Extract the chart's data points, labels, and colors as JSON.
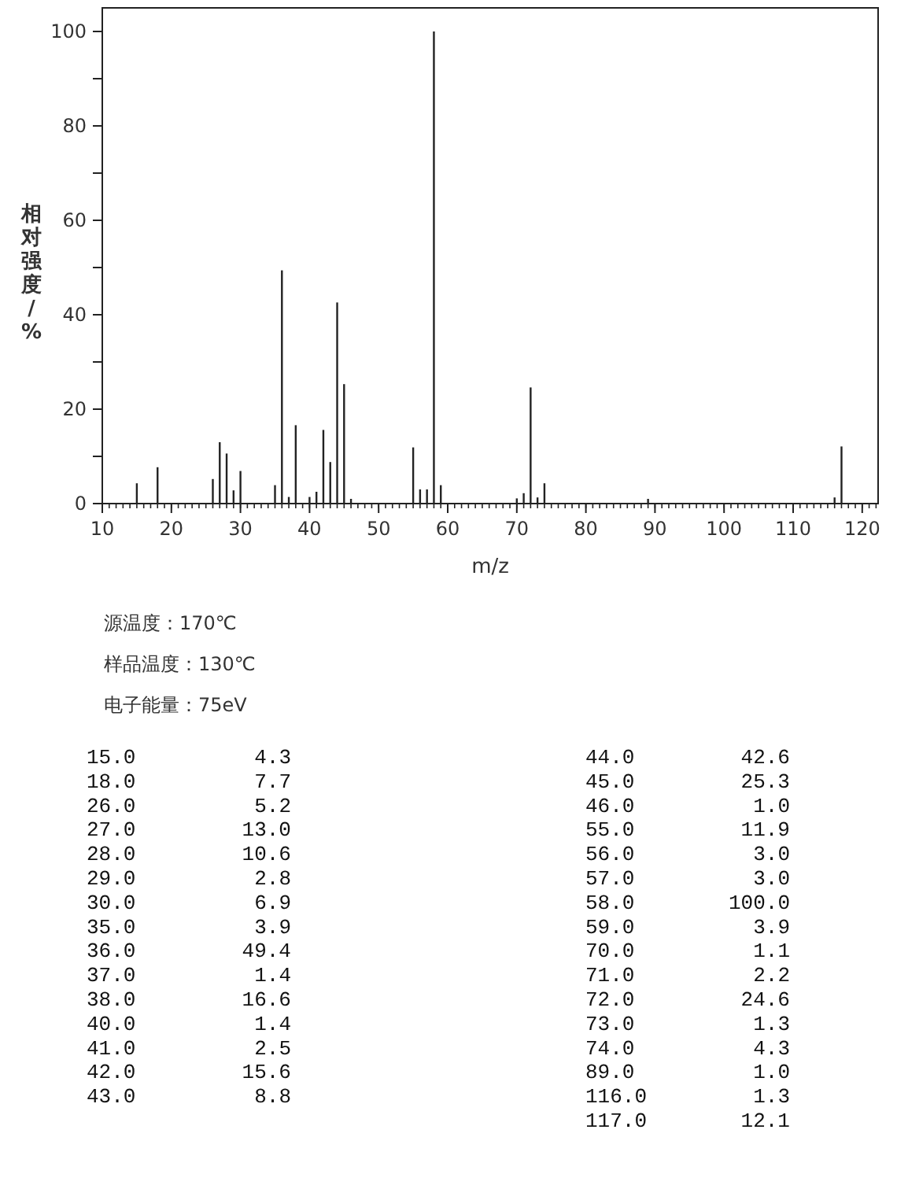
{
  "chart_data": [
    {
      "type": "bar",
      "xlabel": "m/z",
      "ylabel": "相对强度/%",
      "x": [
        15,
        18,
        26,
        27,
        28,
        29,
        30,
        35,
        36,
        37,
        38,
        40,
        41,
        42,
        43,
        44,
        45,
        46,
        55,
        56,
        57,
        58,
        59,
        70,
        71,
        72,
        73,
        74,
        89,
        116,
        117
      ],
      "values": [
        4.3,
        7.7,
        5.2,
        13.0,
        10.6,
        2.8,
        6.9,
        3.9,
        49.4,
        1.4,
        16.6,
        1.4,
        2.5,
        15.6,
        8.8,
        42.6,
        25.3,
        1.0,
        11.9,
        3.0,
        3.0,
        100.0,
        3.9,
        1.1,
        2.2,
        24.6,
        1.3,
        4.3,
        1.0,
        1.3,
        12.1
      ],
      "color": "#222222",
      "xlim": [
        10,
        122.3
      ],
      "xticks": [
        10,
        20,
        30,
        40,
        50,
        60,
        70,
        80,
        90,
        100,
        110,
        120
      ],
      "ylim": [
        0,
        105
      ],
      "yticks": [
        0,
        {
          "value": 10,
          "label": null
        },
        20,
        {
          "value": 30,
          "label": null
        },
        40,
        {
          "value": 50,
          "label": null
        },
        60,
        {
          "value": 70,
          "label": null
        },
        80,
        {
          "value": 90,
          "label": null
        },
        100
      ],
      "grid": false,
      "annotations": [
        "源温度：170℃",
        "样品温度：130℃",
        "电子能量：75eV"
      ]
    },
    {
      "type": "other",
      "annotations": [
        "15.0",
        "4.3",
        "18.0",
        "7.7",
        "26.0",
        "5.2",
        "27.0",
        "13.0",
        "28.0",
        "10.6",
        "29.0",
        "2.8",
        "30.0",
        "6.9",
        "35.0",
        "3.9",
        "36.0",
        "49.4",
        "37.0",
        "1.4",
        "38.0",
        "16.6",
        "40.0",
        "1.4",
        "41.0",
        "2.5",
        "42.0",
        "15.6",
        "43.0",
        "8.8",
        "44.0",
        "42.6",
        "45.0",
        "25.3",
        "46.0",
        "1.0",
        "55.0",
        "11.9",
        "56.0",
        "3.0",
        "57.0",
        "3.0",
        "58.0",
        "100.0",
        "59.0",
        "3.9",
        "70.0",
        "1.1",
        "71.0",
        "2.2",
        "72.0",
        "24.6",
        "73.0",
        "1.3",
        "74.0",
        "4.3",
        "89.0",
        "1.0",
        "116.0",
        "1.3",
        "117.0",
        "12.1"
      ]
    }
  ]
}
